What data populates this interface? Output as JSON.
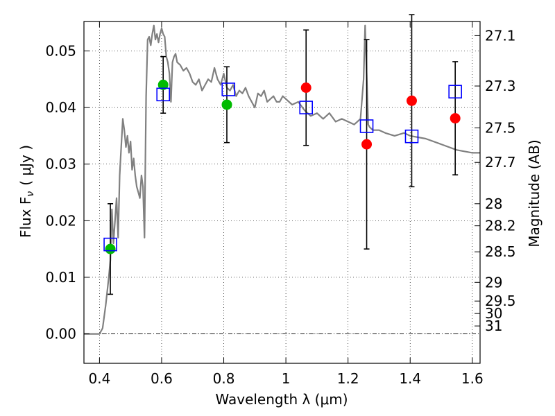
{
  "chart_data": {
    "type": "scatter",
    "xlabel": "Wavelength  λ (μm)",
    "ylabel": "Flux  F",
    "ylabel_sub": "ν",
    "ylabel_unit": "( μJy )",
    "right_ylabel": "Magnitude (AB)",
    "xlim": [
      0.35,
      1.625
    ],
    "ylim": [
      -0.0052,
      0.0552
    ],
    "x_ticks": [
      0.4,
      0.6,
      0.8,
      1.0,
      1.2,
      1.4,
      1.6
    ],
    "x_tick_labels": [
      "0.4",
      "0.6",
      "0.8",
      "1",
      "1.2",
      "1.4",
      "1.6"
    ],
    "y_ticks": [
      0.0,
      0.01,
      0.02,
      0.03,
      0.04,
      0.05
    ],
    "y_tick_labels": [
      "0.00",
      "0.01",
      "0.02",
      "0.03",
      "0.04",
      "0.05"
    ],
    "mag_ticks": [
      {
        "label": "27.1",
        "flux": 0.0527
      },
      {
        "label": "27.3",
        "flux": 0.0438
      },
      {
        "label": "27.5",
        "flux": 0.0364
      },
      {
        "label": "27.7",
        "flux": 0.0303
      },
      {
        "label": "28",
        "flux": 0.023
      },
      {
        "label": "28.2",
        "flux": 0.0191
      },
      {
        "label": "28.5",
        "flux": 0.0145
      },
      {
        "label": "29",
        "flux": 0.0091
      },
      {
        "label": "29.5",
        "flux": 0.0058
      },
      {
        "label": "30",
        "flux": 0.0036
      },
      {
        "label": "31",
        "flux": 0.0014
      }
    ],
    "grid": true,
    "colors": {
      "model": "#808080",
      "observed": "#ff0000",
      "detected": "#00bb00",
      "synthetic": "#0000ff",
      "errorbar": "#000000"
    },
    "series": [
      {
        "name": "model spectrum",
        "kind": "line",
        "x": [
          0.35,
          0.4,
          0.41,
          0.42,
          0.43,
          0.435,
          0.44,
          0.445,
          0.45,
          0.455,
          0.46,
          0.465,
          0.47,
          0.475,
          0.48,
          0.485,
          0.49,
          0.495,
          0.5,
          0.505,
          0.51,
          0.515,
          0.52,
          0.525,
          0.53,
          0.535,
          0.54,
          0.545,
          0.55,
          0.555,
          0.56,
          0.565,
          0.57,
          0.575,
          0.58,
          0.585,
          0.59,
          0.595,
          0.6,
          0.605,
          0.61,
          0.615,
          0.62,
          0.625,
          0.63,
          0.635,
          0.64,
          0.645,
          0.65,
          0.66,
          0.67,
          0.68,
          0.69,
          0.7,
          0.71,
          0.72,
          0.73,
          0.74,
          0.75,
          0.76,
          0.77,
          0.78,
          0.79,
          0.8,
          0.81,
          0.82,
          0.83,
          0.84,
          0.85,
          0.86,
          0.87,
          0.88,
          0.89,
          0.9,
          0.91,
          0.92,
          0.93,
          0.94,
          0.95,
          0.96,
          0.97,
          0.98,
          0.99,
          1.0,
          1.02,
          1.04,
          1.06,
          1.08,
          1.1,
          1.12,
          1.14,
          1.16,
          1.18,
          1.2,
          1.22,
          1.24,
          1.25,
          1.255,
          1.26,
          1.265,
          1.27,
          1.28,
          1.3,
          1.32,
          1.35,
          1.38,
          1.4,
          1.45,
          1.5,
          1.55,
          1.6,
          1.625
        ],
        "y": [
          0.0,
          0.0,
          0.001,
          0.005,
          0.01,
          0.013,
          0.022,
          0.016,
          0.02,
          0.024,
          0.017,
          0.028,
          0.033,
          0.038,
          0.036,
          0.033,
          0.035,
          0.032,
          0.034,
          0.029,
          0.031,
          0.028,
          0.026,
          0.025,
          0.024,
          0.028,
          0.026,
          0.017,
          0.042,
          0.052,
          0.0525,
          0.051,
          0.053,
          0.0545,
          0.052,
          0.053,
          0.0515,
          0.053,
          0.054,
          0.053,
          0.0525,
          0.049,
          0.048,
          0.046,
          0.041,
          0.048,
          0.049,
          0.0495,
          0.048,
          0.0475,
          0.0465,
          0.047,
          0.046,
          0.0445,
          0.044,
          0.045,
          0.043,
          0.044,
          0.045,
          0.0445,
          0.047,
          0.045,
          0.044,
          0.046,
          0.0435,
          0.043,
          0.044,
          0.042,
          0.043,
          0.0425,
          0.0435,
          0.042,
          0.041,
          0.04,
          0.0425,
          0.042,
          0.043,
          0.041,
          0.0415,
          0.042,
          0.041,
          0.041,
          0.042,
          0.0415,
          0.0405,
          0.041,
          0.0395,
          0.0385,
          0.039,
          0.038,
          0.039,
          0.0375,
          0.038,
          0.0375,
          0.037,
          0.038,
          0.045,
          0.0545,
          0.046,
          0.037,
          0.0365,
          0.036,
          0.036,
          0.0355,
          0.035,
          0.0355,
          0.035,
          0.0345,
          0.0335,
          0.0325,
          0.032,
          0.032
        ]
      },
      {
        "name": "observed flux",
        "kind": "errorbar",
        "marker": "circle",
        "x": [
          0.435,
          0.605,
          0.81,
          1.065,
          1.26,
          1.405,
          1.545
        ],
        "y": [
          0.015,
          0.044,
          0.0405,
          0.0435,
          0.0335,
          0.0412,
          0.0381
        ],
        "yerr_low": [
          0.008,
          0.005,
          0.0067,
          0.0102,
          0.0185,
          0.0152,
          0.01
        ],
        "yerr_high": [
          0.008,
          0.005,
          0.0067,
          0.0102,
          0.0185,
          0.0152,
          0.01
        ],
        "marker_colors": [
          "detected",
          "detected",
          "detected",
          "observed",
          "observed",
          "observed",
          "observed"
        ]
      },
      {
        "name": "synthetic model flux",
        "kind": "scatter",
        "marker": "open-square",
        "x": [
          0.435,
          0.605,
          0.815,
          1.065,
          1.26,
          1.405,
          1.545
        ],
        "y": [
          0.0158,
          0.0423,
          0.0432,
          0.04,
          0.0367,
          0.0349,
          0.0428
        ]
      }
    ]
  }
}
